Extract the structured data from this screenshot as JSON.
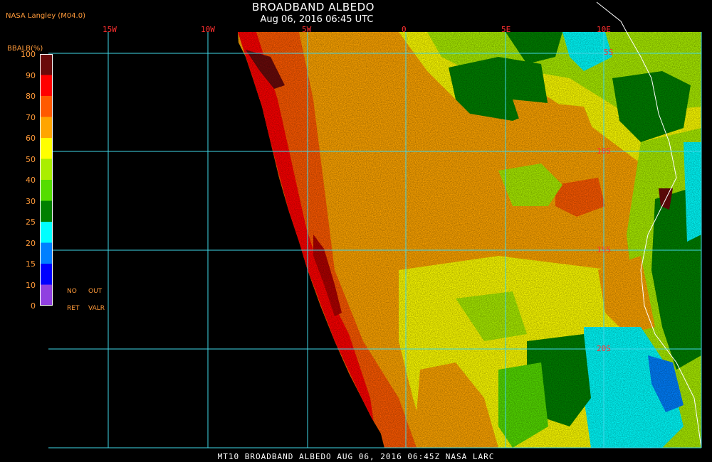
{
  "header": {
    "title": "BROADBAND ALBEDO",
    "subtitle": "Aug 06, 2016 06:45 UTC",
    "producer": "NASA Langley (M04.0)"
  },
  "legend": {
    "title": "BBALB(%)",
    "ticks": [
      "100",
      "90",
      "80",
      "70",
      "60",
      "50",
      "40",
      "30",
      "25",
      "20",
      "15",
      "10",
      "0"
    ],
    "colors": [
      "#6a0a0a",
      "#b00000",
      "#ff0000",
      "#ff5a00",
      "#ffa500",
      "#ffff00",
      "#aaee00",
      "#55dd00",
      "#008000",
      "#00ffff",
      "#0080ff",
      "#0000ff",
      "#9040e0"
    ],
    "no_retrieval_top": "NO",
    "no_retrieval_bottom": "RET",
    "out_valid_top": "OUT",
    "out_valid_bottom": "VALR"
  },
  "map": {
    "longitude_labels": [
      "15W",
      "10W",
      "5W",
      "0",
      "5E",
      "10E"
    ],
    "latitude_labels": [
      "5S",
      "10S",
      "15S",
      "20S"
    ],
    "grid_color": "#40d8e8",
    "label_color": "#ff3030"
  },
  "footer": {
    "text": "MT10  BROADBAND ALBEDO   AUG 06, 2016 06:45Z   NASA LARC"
  }
}
